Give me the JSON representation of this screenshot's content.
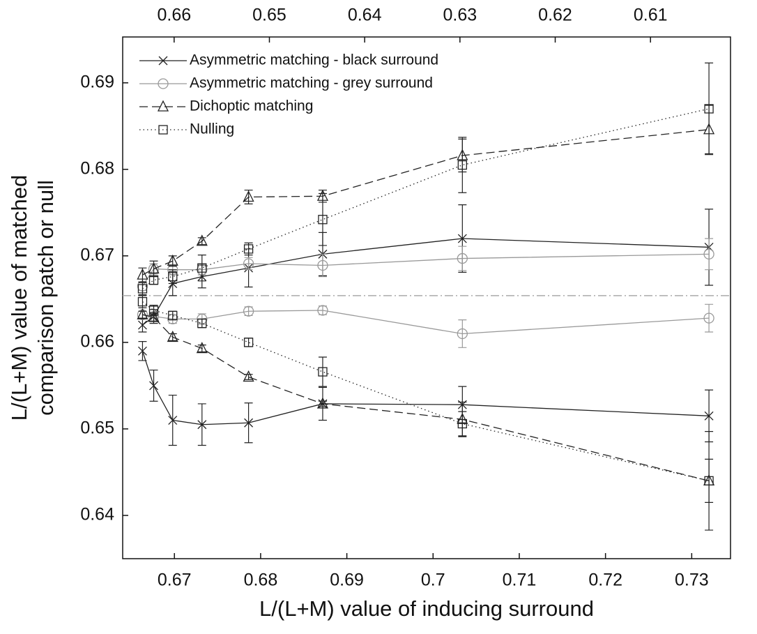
{
  "chart_data": {
    "type": "line",
    "x_label": "L/(L+M) value of inducing surround",
    "y_label": [
      "L/(L+M) value of matched",
      "comparison patch or null"
    ],
    "x": [
      0.6663,
      0.6676,
      0.6698,
      0.6732,
      0.6786,
      0.6872,
      0.7034,
      0.732
    ],
    "xlim": [
      0.664,
      0.7345
    ],
    "xticks": [
      0.67,
      0.68,
      0.69,
      0.7,
      0.71,
      0.72,
      0.73
    ],
    "x2lim": [
      0.6654,
      0.6016
    ],
    "x2ticks": [
      0.66,
      0.65,
      0.64,
      0.63,
      0.62,
      0.61
    ],
    "ylim": [
      0.635,
      0.6953
    ],
    "yticks": [
      0.64,
      0.65,
      0.66,
      0.67,
      0.68,
      0.69
    ],
    "reference_line": {
      "value": 0.6654,
      "color": "#aaaaaa"
    },
    "legend": "upper left",
    "series": [
      {
        "name": "Asymmetric matching - black surround",
        "color": "#222222",
        "marker": "x",
        "dash": "solid",
        "values": [
          0.662,
          0.663,
          0.6668,
          0.6676,
          0.6686,
          0.6702,
          0.672,
          0.671
        ],
        "errors": [
          0.0008,
          0.0008,
          0.0014,
          0.0013,
          0.0022,
          0.0025,
          0.0039,
          0.0044
        ]
      },
      {
        "name": "Asymmetric matching - grey surround",
        "color": "#999999",
        "marker": "circle",
        "dash": "solid",
        "values": [
          0.6665,
          0.6685,
          0.6684,
          0.6684,
          0.6691,
          0.6689,
          0.6697,
          0.6702
        ],
        "errors": [
          0.0005,
          0.0006,
          0.0006,
          0.0006,
          0.0007,
          0.0013,
          0.0014,
          0.0018
        ]
      },
      {
        "name": "Dichoptic matching",
        "color": "#222222",
        "marker": "triangle",
        "dash": "dashed",
        "values": [
          0.6678,
          0.6685,
          0.6694,
          0.6717,
          0.6768,
          0.6769,
          0.6816,
          0.6846
        ],
        "errors": [
          0.0008,
          0.0009,
          0.0006,
          0.0004,
          0.0008,
          0.0007,
          0.0019,
          0.0028
        ]
      },
      {
        "name": "Nulling",
        "color": "#222222",
        "marker": "square",
        "dash": "dotted",
        "values": [
          0.6662,
          0.6672,
          0.6676,
          0.6686,
          0.6708,
          0.6742,
          0.6805,
          0.687
        ],
        "errors": [
          0.0007,
          0.0005,
          0.0008,
          0.0015,
          0.0007,
          0.003,
          0.0032,
          0.0053
        ]
      },
      {
        "color": "#222222",
        "marker": "x",
        "dash": "solid",
        "values": [
          0.659,
          0.655,
          0.651,
          0.6505,
          0.6507,
          0.6529,
          0.6528,
          0.6515
        ],
        "errors": [
          0.0011,
          0.0018,
          0.0029,
          0.0024,
          0.0023,
          0.0019,
          0.0021,
          0.003
        ]
      },
      {
        "color": "#999999",
        "marker": "circle",
        "dash": "solid",
        "values": [
          0.6632,
          0.663,
          0.6627,
          0.6627,
          0.6636,
          0.6637,
          0.661,
          0.6628
        ],
        "errors": [
          0.0004,
          0.0005,
          0.0005,
          0.0006,
          0.0005,
          0.0005,
          0.0016,
          0.0016
        ]
      },
      {
        "color": "#222222",
        "marker": "triangle",
        "dash": "dashed",
        "values": [
          0.6632,
          0.6629,
          0.6606,
          0.6593,
          0.656,
          0.6529,
          0.6511,
          0.644
        ],
        "errors": [
          0.0004,
          0.0005,
          0.0004,
          0.0004,
          0.0003,
          0.0003,
          0.002,
          0.0025
        ]
      },
      {
        "color": "#222222",
        "marker": "square",
        "dash": "dotted",
        "values": [
          0.6647,
          0.6637,
          0.6631,
          0.6622,
          0.66,
          0.6566,
          0.6506,
          0.644
        ],
        "errors": [
          0.0007,
          0.0006,
          0.0005,
          0.0005,
          0.0005,
          0.0017,
          0.0014,
          0.0057
        ]
      }
    ]
  }
}
